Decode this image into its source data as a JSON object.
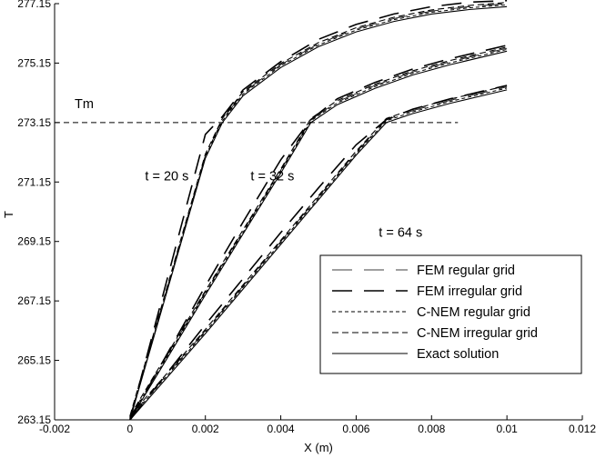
{
  "chart_data": {
    "type": "line",
    "title": "",
    "xlabel": "X (m)",
    "ylabel": "T",
    "xlim": [
      -0.002,
      0.012
    ],
    "ylim": [
      263.15,
      277.15
    ],
    "x_ticks": [
      "-0.002",
      "0",
      "0.002",
      "0.004",
      "0.006",
      "0.008",
      "0.01",
      "0.012"
    ],
    "y_ticks": [
      "263.15",
      "265.15",
      "267.15",
      "269.15",
      "271.15",
      "273.15",
      "275.15",
      "277.15"
    ],
    "grid": false,
    "legend_position": "bottom-right",
    "melting_line": {
      "label": "Tm",
      "y": 273.15,
      "x_range": [
        -0.002,
        0.0087
      ]
    },
    "annotations": [
      {
        "text": "t = 20 s",
        "x": 0.0004,
        "y": 271.15
      },
      {
        "text": "t = 32 s",
        "x": 0.0032,
        "y": 271.15
      },
      {
        "text": "t = 64 s",
        "x": 0.0066,
        "y": 269.25
      }
    ],
    "legend": [
      {
        "name": "FEM regular grid",
        "style": "fem-regular"
      },
      {
        "name": "FEM irregular grid",
        "style": "fem-irregular"
      },
      {
        "name": "C-NEM regular grid",
        "style": "cnem-regular"
      },
      {
        "name": "C-NEM irregular grid",
        "style": "cnem-irregular"
      },
      {
        "name": "Exact solution",
        "style": "exact"
      }
    ],
    "curve_groups": [
      {
        "time": "t = 20 s",
        "x": [
          0,
          0.0005,
          0.001,
          0.0015,
          0.002,
          0.00245,
          0.003,
          0.004,
          0.005,
          0.006,
          0.007,
          0.008,
          0.009,
          0.01
        ],
        "exact": [
          263.15,
          265.35,
          267.55,
          269.75,
          271.95,
          273.15,
          274.05,
          275.0,
          275.7,
          276.2,
          276.55,
          276.8,
          276.95,
          277.05
        ],
        "fem_irregular_y": [
          263.15,
          265.55,
          267.95,
          270.35,
          272.75,
          273.35,
          274.25,
          275.2,
          275.95,
          276.45,
          276.8,
          277.05,
          277.2,
          277.25
        ]
      },
      {
        "time": "t = 32 s",
        "x": [
          0,
          0.001,
          0.002,
          0.003,
          0.004,
          0.0048,
          0.0055,
          0.0065,
          0.0075,
          0.0085,
          0.01
        ],
        "exact": [
          263.15,
          265.25,
          267.35,
          269.4,
          271.45,
          273.15,
          273.75,
          274.3,
          274.75,
          275.1,
          275.55
        ],
        "fem_irregular_y": [
          263.15,
          265.4,
          267.65,
          269.8,
          271.9,
          273.25,
          273.95,
          274.5,
          274.95,
          275.3,
          275.75
        ]
      },
      {
        "time": "t = 64 s",
        "x": [
          0,
          0.001,
          0.002,
          0.003,
          0.004,
          0.005,
          0.006,
          0.0068,
          0.0075,
          0.0085,
          0.01
        ],
        "exact": [
          263.15,
          264.6,
          266.05,
          267.55,
          269.05,
          270.55,
          272.05,
          273.15,
          273.45,
          273.8,
          274.25
        ],
        "fem_irregular_y": [
          263.15,
          264.75,
          266.35,
          267.9,
          269.45,
          270.95,
          272.4,
          273.25,
          273.6,
          273.95,
          274.4
        ]
      }
    ]
  }
}
